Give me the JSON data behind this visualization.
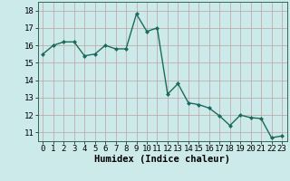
{
  "x": [
    0,
    1,
    2,
    3,
    4,
    5,
    6,
    7,
    8,
    9,
    10,
    11,
    12,
    13,
    14,
    15,
    16,
    17,
    18,
    19,
    20,
    21,
    22,
    23
  ],
  "y": [
    15.5,
    16.0,
    16.2,
    16.2,
    15.4,
    15.5,
    16.0,
    15.8,
    15.8,
    17.8,
    16.8,
    17.0,
    13.2,
    13.8,
    12.7,
    12.6,
    12.4,
    11.95,
    11.4,
    12.0,
    11.85,
    11.8,
    10.7,
    10.8
  ],
  "line_color": "#1a6b5a",
  "marker": "D",
  "marker_size": 2,
  "bg_color": "#cceaea",
  "grid_color": "#c0a0a0",
  "xlabel": "Humidex (Indice chaleur)",
  "xlim": [
    -0.5,
    23.5
  ],
  "ylim": [
    10.5,
    18.5
  ],
  "yticks": [
    11,
    12,
    13,
    14,
    15,
    16,
    17,
    18
  ],
  "xticks": [
    0,
    1,
    2,
    3,
    4,
    5,
    6,
    7,
    8,
    9,
    10,
    11,
    12,
    13,
    14,
    15,
    16,
    17,
    18,
    19,
    20,
    21,
    22,
    23
  ],
  "xlabel_fontsize": 7.5,
  "tick_fontsize": 6.5,
  "line_width": 1.0
}
